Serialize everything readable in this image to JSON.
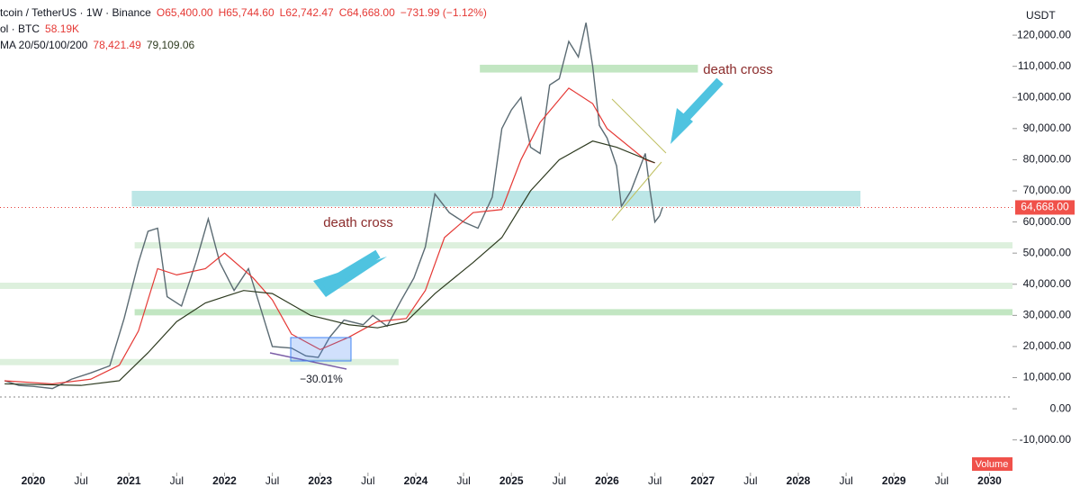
{
  "header": {
    "symbol": "tcoin / TetherUS · 1W · Binance",
    "ohlc": [
      "O65,400.00",
      "H65,744.60",
      "L62,742.47",
      "C64,668.00",
      "−731.99 (−1.12%)"
    ],
    "volume": [
      "ol · BTC",
      "58.19K"
    ],
    "ma": [
      "MA 20/50/100/200",
      "78,421.49",
      "79,109.06"
    ]
  },
  "chart_data": {
    "type": "line",
    "currency": "USDT",
    "volume_label": "Volume",
    "annotations": [
      "death cross",
      "death cross",
      "−30.01%"
    ],
    "last_price": {
      "value": 64668,
      "label": "64,668.00"
    },
    "xlim": [
      2019.652,
      2030.24
    ],
    "ylim": [
      -20500,
      131300
    ],
    "xticks": [
      {
        "value": 2020,
        "label": "2020"
      },
      {
        "value": 2020.5,
        "label": "Jul"
      },
      {
        "value": 2021,
        "label": "2021"
      },
      {
        "value": 2021.5,
        "label": "Jul"
      },
      {
        "value": 2022,
        "label": "2022"
      },
      {
        "value": 2022.5,
        "label": "Jul"
      },
      {
        "value": 2023,
        "label": "2023"
      },
      {
        "value": 2023.5,
        "label": "Jul"
      },
      {
        "value": 2024,
        "label": "2024"
      },
      {
        "value": 2024.5,
        "label": "Jul"
      },
      {
        "value": 2025,
        "label": "2025"
      },
      {
        "value": 2025.5,
        "label": "Jul"
      },
      {
        "value": 2026,
        "label": "2026"
      },
      {
        "value": 2026.5,
        "label": "Jul"
      },
      {
        "value": 2027,
        "label": "2027"
      },
      {
        "value": 2027.5,
        "label": "Jul"
      },
      {
        "value": 2028,
        "label": "2028"
      },
      {
        "value": 2028.5,
        "label": "Jul"
      },
      {
        "value": 2029,
        "label": "2029"
      },
      {
        "value": 2029.5,
        "label": "Jul"
      },
      {
        "value": 2030,
        "label": "2030"
      }
    ],
    "yticks": [
      {
        "value": -10000,
        "label": "-10,000.00"
      },
      {
        "value": 0,
        "label": "0.00"
      },
      {
        "value": 10000,
        "label": "10,000.00"
      },
      {
        "value": 20000,
        "label": "20,000.00"
      },
      {
        "value": 30000,
        "label": "30,000.00"
      },
      {
        "value": 40000,
        "label": "40,000.00"
      },
      {
        "value": 50000,
        "label": "50,000.00"
      },
      {
        "value": 60000,
        "label": "60,000.00"
      },
      {
        "value": 70000,
        "label": "70,000.00"
      },
      {
        "value": 80000,
        "label": "80,000.00"
      },
      {
        "value": 90000,
        "label": "90,000.00"
      },
      {
        "value": 100000,
        "label": "100,000.00"
      },
      {
        "value": 110000,
        "label": "110,000.00"
      },
      {
        "value": 120000,
        "label": "120,000.00"
      }
    ],
    "zones": [
      {
        "color": "#9fdcdc",
        "x": [
          2021.03,
          2028.65
        ],
        "y": [
          65000,
          70000
        ]
      },
      {
        "color": "#a8dba8",
        "x": [
          2024.67,
          2026.95
        ],
        "y": [
          108000,
          110500
        ]
      },
      {
        "color": "#cfe9cf",
        "x": [
          2021.06,
          2030.24
        ],
        "y": [
          51500,
          53500
        ]
      },
      {
        "color": "#cfe9cf",
        "x": [
          2019.652,
          2030.24
        ],
        "y": [
          38500,
          40500
        ]
      },
      {
        "color": "#a8dba8",
        "x": [
          2021.06,
          2030.24
        ],
        "y": [
          30000,
          32000
        ]
      },
      {
        "color": "#cfe9cf",
        "x": [
          2019.652,
          2023.82
        ],
        "y": [
          14000,
          16000
        ]
      }
    ],
    "series": [
      {
        "name": "BTC",
        "color": "#5b6b73",
        "x": [
          2019.7,
          2019.85,
          2020.0,
          2020.2,
          2020.4,
          2020.6,
          2020.8,
          2020.95,
          2021.1,
          2021.2,
          2021.3,
          2021.4,
          2021.55,
          2021.7,
          2021.83,
          2021.95,
          2022.1,
          2022.25,
          2022.4,
          2022.5,
          2022.7,
          2022.85,
          2022.98,
          2023.1,
          2023.25,
          2023.45,
          2023.55,
          2023.7,
          2023.85,
          2023.98,
          2024.1,
          2024.2,
          2024.35,
          2024.5,
          2024.65,
          2024.8,
          2024.9,
          2025.0,
          2025.1,
          2025.2,
          2025.3,
          2025.4,
          2025.5,
          2025.6,
          2025.7,
          2025.78,
          2025.85,
          2025.92,
          2026.0,
          2026.1,
          2026.15,
          2026.25,
          2026.35,
          2026.4,
          2026.45,
          2026.5,
          2026.55,
          2026.58
        ],
        "values": [
          9000,
          7500,
          7200,
          6500,
          9500,
          11500,
          13800,
          29000,
          47000,
          57000,
          58000,
          36000,
          33000,
          47000,
          61000,
          47000,
          38000,
          45000,
          30000,
          20000,
          19500,
          17000,
          16500,
          23000,
          28500,
          27000,
          30000,
          26500,
          35000,
          42000,
          52000,
          69000,
          63000,
          60000,
          58000,
          68000,
          90000,
          96000,
          100000,
          84000,
          82000,
          104000,
          106000,
          118000,
          113000,
          124000,
          110000,
          91000,
          87000,
          78000,
          65000,
          70000,
          78000,
          82000,
          70000,
          60000,
          62000,
          64668
        ]
      },
      {
        "name": "MA 20",
        "color": "#e53935",
        "x": [
          2019.7,
          2020.2,
          2020.6,
          2020.9,
          2021.1,
          2021.3,
          2021.5,
          2021.8,
          2022.0,
          2022.3,
          2022.5,
          2022.7,
          2023.0,
          2023.3,
          2023.6,
          2023.9,
          2024.1,
          2024.3,
          2024.6,
          2024.9,
          2025.1,
          2025.3,
          2025.6,
          2025.85,
          2026.0,
          2026.4,
          2026.5
        ],
        "values": [
          9000,
          8000,
          9500,
          14000,
          25000,
          45000,
          43000,
          45000,
          50000,
          42000,
          35000,
          24000,
          19000,
          23000,
          28000,
          29000,
          38000,
          55000,
          63000,
          64000,
          80000,
          92000,
          103000,
          98000,
          90000,
          80000,
          79000
        ]
      },
      {
        "name": "MA 50",
        "color": "#2e3b20",
        "x": [
          2019.7,
          2020.5,
          2020.9,
          2021.2,
          2021.5,
          2021.8,
          2022.2,
          2022.5,
          2022.9,
          2023.3,
          2023.6,
          2023.9,
          2024.2,
          2024.6,
          2024.9,
          2025.2,
          2025.5,
          2025.85,
          2026.1,
          2026.5
        ],
        "values": [
          8000,
          7500,
          9000,
          18000,
          28000,
          34000,
          38000,
          37000,
          30000,
          27000,
          26000,
          28000,
          37000,
          47000,
          55000,
          70000,
          80000,
          86000,
          84000,
          79000
        ]
      }
    ]
  }
}
